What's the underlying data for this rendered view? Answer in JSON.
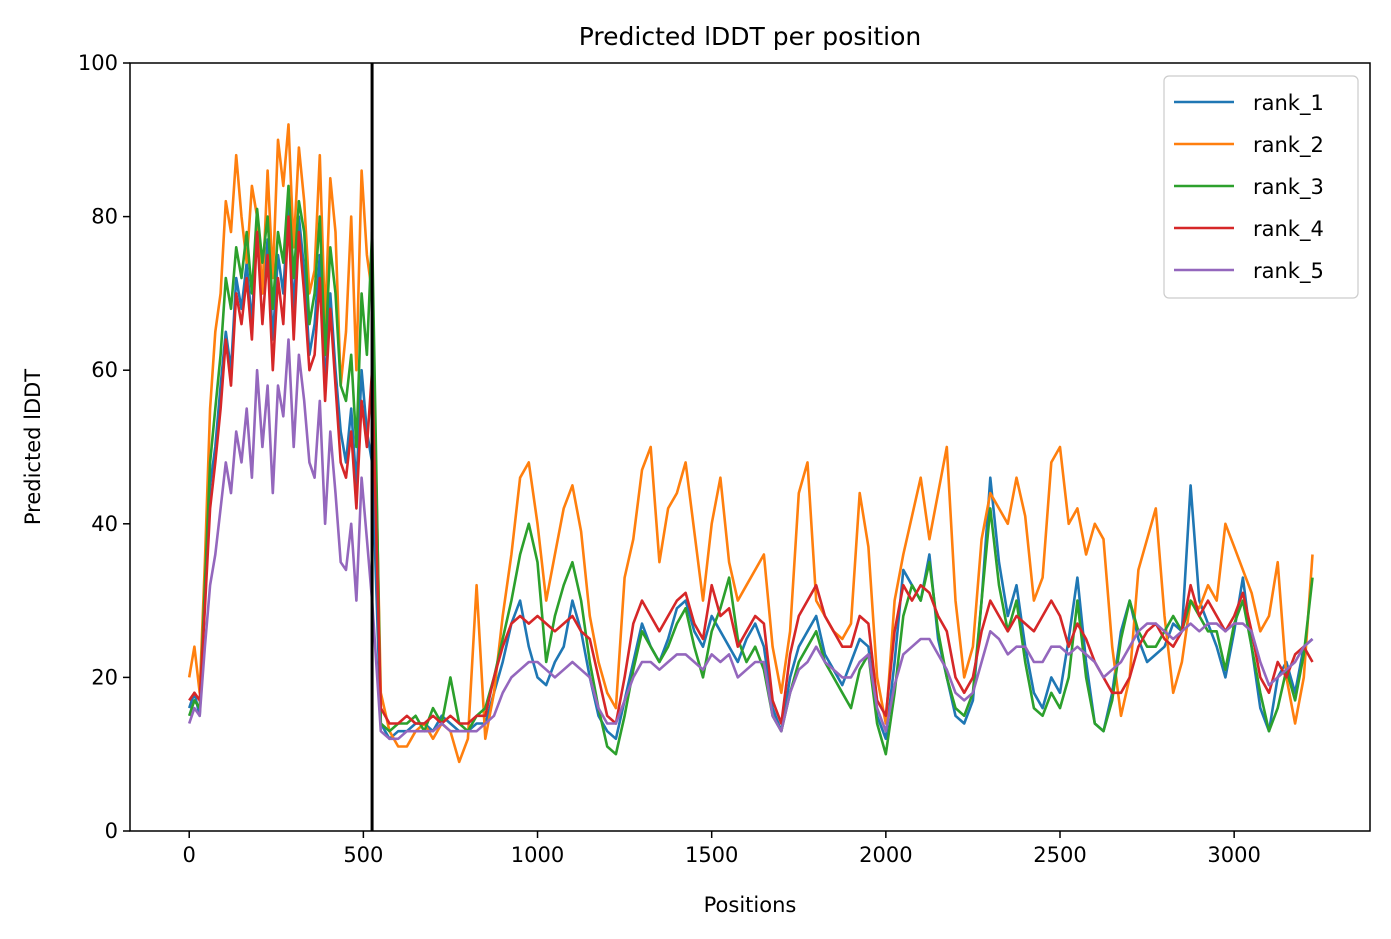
{
  "chart_data": {
    "type": "line",
    "title": "Predicted lDDT per position",
    "xlabel": "Positions",
    "ylabel": "Predicted lDDT",
    "xlim": [
      -170,
      3390
    ],
    "ylim": [
      0,
      100
    ],
    "xticks": [
      0,
      500,
      1000,
      1500,
      2000,
      2500,
      3000
    ],
    "yticks": [
      0,
      20,
      40,
      60,
      80,
      100
    ],
    "grid": false,
    "legend_position": "top-right",
    "vline_x": 525,
    "x_points": [
      0,
      15,
      30,
      45,
      60,
      75,
      90,
      105,
      120,
      135,
      150,
      165,
      180,
      195,
      210,
      225,
      240,
      255,
      270,
      285,
      300,
      315,
      330,
      345,
      360,
      375,
      390,
      405,
      420,
      435,
      450,
      465,
      480,
      495,
      510,
      525,
      550,
      575,
      600,
      625,
      650,
      675,
      700,
      725,
      750,
      775,
      800,
      825,
      850,
      875,
      900,
      925,
      950,
      975,
      1000,
      1025,
      1050,
      1075,
      1100,
      1125,
      1150,
      1175,
      1200,
      1225,
      1250,
      1275,
      1300,
      1325,
      1350,
      1375,
      1400,
      1425,
      1450,
      1475,
      1500,
      1525,
      1550,
      1575,
      1600,
      1625,
      1650,
      1675,
      1700,
      1725,
      1750,
      1775,
      1800,
      1825,
      1850,
      1875,
      1900,
      1925,
      1950,
      1975,
      2000,
      2025,
      2050,
      2075,
      2100,
      2125,
      2150,
      2175,
      2200,
      2225,
      2250,
      2275,
      2300,
      2325,
      2350,
      2375,
      2400,
      2425,
      2450,
      2475,
      2500,
      2525,
      2550,
      2575,
      2600,
      2625,
      2650,
      2675,
      2700,
      2725,
      2750,
      2775,
      2800,
      2825,
      2850,
      2875,
      2900,
      2925,
      2950,
      2975,
      3000,
      3025,
      3050,
      3075,
      3100,
      3125,
      3150,
      3175,
      3200,
      3225
    ],
    "series": [
      {
        "name": "rank_1",
        "color": "#1f77b4",
        "values": [
          16,
          18,
          15,
          30,
          45,
          50,
          58,
          65,
          60,
          72,
          68,
          74,
          66,
          80,
          70,
          77,
          64,
          75,
          70,
          82,
          68,
          80,
          73,
          62,
          66,
          75,
          58,
          70,
          60,
          52,
          48,
          55,
          45,
          60,
          52,
          48,
          14,
          12,
          13,
          13,
          14,
          14,
          13,
          15,
          14,
          13,
          13,
          14,
          14,
          18,
          22,
          27,
          30,
          24,
          20,
          19,
          22,
          24,
          30,
          26,
          20,
          15,
          13,
          12,
          17,
          22,
          27,
          24,
          22,
          25,
          29,
          30,
          26,
          24,
          28,
          26,
          24,
          22,
          25,
          27,
          24,
          16,
          13,
          20,
          24,
          26,
          28,
          23,
          21,
          19,
          22,
          25,
          24,
          15,
          12,
          22,
          34,
          32,
          30,
          36,
          25,
          20,
          15,
          14,
          17,
          30,
          46,
          35,
          28,
          32,
          24,
          18,
          16,
          20,
          18,
          25,
          33,
          22,
          14,
          13,
          18,
          26,
          30,
          25,
          22,
          23,
          24,
          27,
          26,
          45,
          30,
          27,
          24,
          20,
          26,
          33,
          24,
          16,
          13,
          20,
          22,
          18,
          24,
          25
        ]
      },
      {
        "name": "rank_2",
        "color": "#ff7f0e",
        "values": [
          20,
          24,
          18,
          35,
          55,
          65,
          70,
          82,
          78,
          88,
          80,
          74,
          84,
          80,
          70,
          86,
          72,
          90,
          84,
          92,
          76,
          89,
          82,
          70,
          73,
          88,
          66,
          85,
          78,
          58,
          65,
          80,
          60,
          86,
          75,
          70,
          18,
          13,
          11,
          11,
          13,
          14,
          12,
          14,
          13,
          9,
          12,
          32,
          12,
          18,
          28,
          36,
          46,
          48,
          40,
          30,
          36,
          42,
          45,
          39,
          28,
          22,
          18,
          16,
          33,
          38,
          47,
          50,
          35,
          42,
          44,
          48,
          39,
          30,
          40,
          46,
          35,
          30,
          32,
          34,
          36,
          24,
          18,
          26,
          44,
          48,
          30,
          28,
          26,
          25,
          27,
          44,
          37,
          20,
          14,
          30,
          36,
          41,
          46,
          38,
          44,
          50,
          30,
          20,
          24,
          38,
          44,
          42,
          40,
          46,
          41,
          30,
          33,
          48,
          50,
          40,
          42,
          36,
          40,
          38,
          24,
          15,
          20,
          34,
          38,
          42,
          28,
          18,
          22,
          30,
          29,
          32,
          30,
          40,
          37,
          34,
          31,
          26,
          28,
          35,
          20,
          14,
          20,
          36
        ]
      },
      {
        "name": "rank_3",
        "color": "#2ca02c",
        "values": [
          15,
          17,
          16,
          32,
          48,
          55,
          62,
          72,
          68,
          76,
          72,
          78,
          70,
          81,
          74,
          80,
          68,
          78,
          74,
          84,
          72,
          82,
          78,
          66,
          70,
          80,
          62,
          76,
          70,
          58,
          56,
          62,
          50,
          70,
          62,
          78,
          14,
          13,
          14,
          14,
          15,
          13,
          16,
          14,
          20,
          14,
          13,
          15,
          16,
          20,
          25,
          30,
          36,
          40,
          35,
          22,
          28,
          32,
          35,
          30,
          22,
          16,
          11,
          10,
          15,
          21,
          26,
          24,
          22,
          24,
          27,
          29,
          24,
          20,
          26,
          29,
          33,
          25,
          22,
          24,
          21,
          15,
          13,
          18,
          22,
          24,
          26,
          22,
          20,
          18,
          16,
          21,
          23,
          14,
          10,
          18,
          28,
          32,
          30,
          35,
          26,
          20,
          16,
          15,
          18,
          30,
          42,
          32,
          26,
          30,
          22,
          16,
          15,
          18,
          16,
          20,
          30,
          20,
          14,
          13,
          17,
          25,
          30,
          26,
          24,
          24,
          26,
          28,
          26,
          30,
          28,
          26,
          26,
          21,
          27,
          30,
          24,
          18,
          13,
          16,
          21,
          17,
          23,
          33
        ]
      },
      {
        "name": "rank_4",
        "color": "#d62728",
        "values": [
          17,
          18,
          17,
          29,
          42,
          48,
          55,
          64,
          58,
          70,
          66,
          72,
          64,
          78,
          66,
          75,
          60,
          72,
          66,
          80,
          64,
          78,
          70,
          60,
          62,
          72,
          56,
          68,
          58,
          48,
          46,
          52,
          42,
          56,
          50,
          60,
          16,
          14,
          14,
          15,
          14,
          14,
          15,
          14,
          15,
          14,
          14,
          15,
          15,
          20,
          24,
          27,
          28,
          27,
          28,
          27,
          26,
          27,
          28,
          26,
          25,
          20,
          15,
          14,
          20,
          27,
          30,
          28,
          26,
          28,
          30,
          31,
          27,
          25,
          32,
          28,
          29,
          24,
          26,
          28,
          27,
          17,
          14,
          23,
          28,
          30,
          32,
          28,
          26,
          24,
          24,
          28,
          27,
          17,
          15,
          26,
          32,
          30,
          32,
          31,
          28,
          26,
          20,
          18,
          20,
          26,
          30,
          28,
          26,
          28,
          27,
          26,
          28,
          30,
          28,
          24,
          27,
          25,
          22,
          20,
          18,
          18,
          20,
          24,
          26,
          27,
          25,
          24,
          26,
          32,
          28,
          30,
          28,
          26,
          28,
          31,
          26,
          20,
          18,
          22,
          20,
          23,
          24,
          22
        ]
      },
      {
        "name": "rank_5",
        "color": "#9467bd",
        "values": [
          14,
          16,
          15,
          24,
          32,
          36,
          42,
          48,
          44,
          52,
          48,
          55,
          46,
          60,
          50,
          58,
          44,
          58,
          54,
          64,
          50,
          62,
          56,
          48,
          46,
          56,
          40,
          52,
          44,
          35,
          34,
          40,
          30,
          46,
          38,
          30,
          13,
          12,
          12,
          13,
          13,
          13,
          13,
          14,
          13,
          13,
          13,
          13,
          14,
          15,
          18,
          20,
          21,
          22,
          22,
          21,
          20,
          21,
          22,
          21,
          20,
          16,
          14,
          14,
          17,
          20,
          22,
          22,
          21,
          22,
          23,
          23,
          22,
          21,
          23,
          22,
          23,
          20,
          21,
          22,
          22,
          15,
          13,
          18,
          21,
          22,
          24,
          22,
          21,
          20,
          20,
          22,
          23,
          16,
          13,
          19,
          23,
          24,
          25,
          25,
          23,
          21,
          18,
          17,
          18,
          22,
          26,
          25,
          23,
          24,
          24,
          22,
          22,
          24,
          24,
          23,
          24,
          23,
          22,
          20,
          21,
          22,
          24,
          26,
          27,
          27,
          26,
          25,
          26,
          27,
          26,
          27,
          27,
          26,
          27,
          27,
          26,
          22,
          19,
          20,
          21,
          22,
          24,
          25
        ]
      }
    ]
  }
}
